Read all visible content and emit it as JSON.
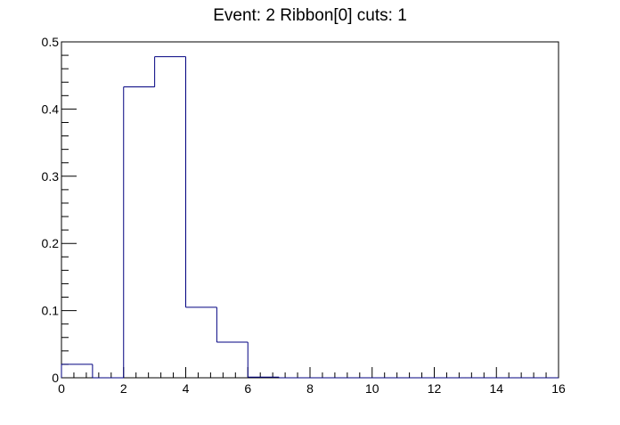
{
  "chart_data": {
    "type": "bar",
    "subtype": "histogram-step",
    "title": "Event: 2 Ribbon[0] cuts: 1",
    "xlabel": "",
    "ylabel": "",
    "xlim": [
      0,
      16
    ],
    "ylim": [
      0,
      0.5
    ],
    "x_ticks": [
      0,
      2,
      4,
      6,
      8,
      10,
      12,
      14,
      16
    ],
    "x_tick_labels": [
      "0",
      "2",
      "4",
      "6",
      "8",
      "10",
      "12",
      "14",
      "16"
    ],
    "y_ticks": [
      0,
      0.1,
      0.2,
      0.3,
      0.4,
      0.5
    ],
    "y_tick_labels": [
      "0",
      "0.1",
      "0.2",
      "0.3",
      "0.4",
      "0.5"
    ],
    "bin_edges": [
      0,
      1,
      2,
      3,
      4,
      5,
      6,
      7,
      8,
      9,
      10,
      11,
      12,
      13,
      14,
      15,
      16
    ],
    "values": [
      0.02,
      0,
      0.433,
      0.478,
      0.105,
      0.053,
      0.001,
      0,
      0,
      0,
      0,
      0,
      0,
      0,
      0,
      0
    ],
    "grid": false,
    "legend": "none",
    "line_color": "#000080"
  }
}
